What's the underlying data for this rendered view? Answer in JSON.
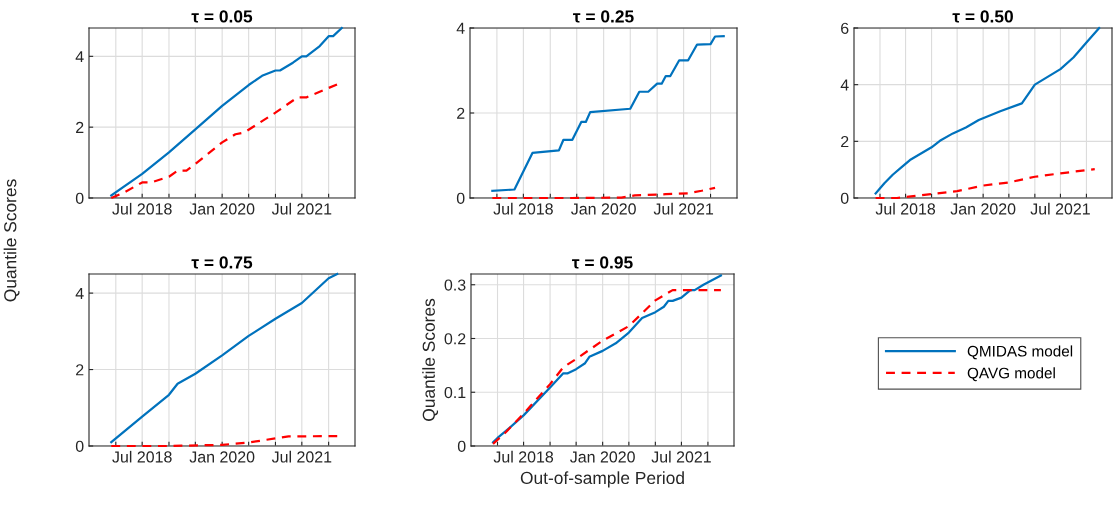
{
  "chart_data": [
    {
      "type": "line",
      "title": "τ = 0.05",
      "ylabel": "Quantile Scores",
      "xlim": [
        "2017-07",
        "2022-07"
      ],
      "ylim": [
        0,
        4.8
      ],
      "yticks": [
        0,
        2,
        4
      ],
      "xticks": [
        {
          "value": "2018-01",
          "label": null
        },
        {
          "value": "2018-07",
          "label": "Jul 2018"
        },
        {
          "value": "2019-01",
          "label": null
        },
        {
          "value": "2019-07",
          "label": null
        },
        {
          "value": "2020-01",
          "label": "Jan 2020"
        },
        {
          "value": "2020-07",
          "label": null
        },
        {
          "value": "2021-01",
          "label": null
        },
        {
          "value": "2021-07",
          "label": "Jul 2021"
        },
        {
          "value": "2022-01",
          "label": null
        }
      ],
      "grid": true,
      "series": [
        {
          "color": "#0072bd",
          "line_style": "solid",
          "x": [
            "2017-12",
            "2018-07",
            "2019-01",
            "2019-07",
            "2020-01",
            "2020-07",
            "2020-10",
            "2021-01",
            "2021-02",
            "2021-05",
            "2021-07",
            "2021-08",
            "2021-11",
            "2022-01",
            "2022-02",
            "2022-04"
          ],
          "values": [
            0.07,
            0.68,
            1.29,
            1.94,
            2.6,
            3.19,
            3.45,
            3.6,
            3.6,
            3.82,
            4.0,
            4.0,
            4.29,
            4.57,
            4.57,
            4.8
          ]
        },
        {
          "color": "#ff0000",
          "line_style": "dashed",
          "x": [
            "2017-12",
            "2018-03",
            "2018-07",
            "2018-09",
            "2019-01",
            "2019-03",
            "2019-05",
            "2019-07",
            "2020-01",
            "2020-04",
            "2020-06",
            "2021-01",
            "2021-06",
            "2021-08",
            "2022-03"
          ],
          "values": [
            0,
            0.16,
            0.44,
            0.44,
            0.6,
            0.77,
            0.77,
            0.96,
            1.57,
            1.8,
            1.85,
            2.41,
            2.84,
            2.84,
            3.21
          ]
        }
      ]
    },
    {
      "type": "line",
      "title": "τ = 0.25",
      "xlim": [
        "2017-07",
        "2022-07"
      ],
      "ylim": [
        0,
        4
      ],
      "yticks": [
        0,
        2,
        4
      ],
      "xticks": [
        {
          "value": "2018-01",
          "label": null
        },
        {
          "value": "2018-07",
          "label": "Jul 2018"
        },
        {
          "value": "2019-01",
          "label": null
        },
        {
          "value": "2019-07",
          "label": null
        },
        {
          "value": "2020-01",
          "label": "Jan 2020"
        },
        {
          "value": "2020-07",
          "label": null
        },
        {
          "value": "2021-01",
          "label": null
        },
        {
          "value": "2021-07",
          "label": "Jul 2021"
        },
        {
          "value": "2022-01",
          "label": null
        }
      ],
      "grid": true,
      "series": [
        {
          "color": "#0072bd",
          "line_style": "solid",
          "x": [
            "2017-12",
            "2018-05",
            "2018-09",
            "2019-03",
            "2019-04",
            "2019-06",
            "2019-08",
            "2019-09",
            "2019-10",
            "2020-07",
            "2020-09",
            "2020-11",
            "2021-01",
            "2021-02",
            "2021-03",
            "2021-04",
            "2021-06",
            "2021-08",
            "2021-10",
            "2022-01",
            "2022-02",
            "2022-04"
          ],
          "values": [
            0.17,
            0.2,
            1.06,
            1.12,
            1.37,
            1.37,
            1.79,
            1.79,
            2.02,
            2.1,
            2.5,
            2.5,
            2.69,
            2.69,
            2.87,
            2.87,
            3.24,
            3.24,
            3.61,
            3.62,
            3.8,
            3.81
          ]
        },
        {
          "color": "#ff0000",
          "line_style": "dashed",
          "x": [
            "2017-12",
            "2019-06",
            "2020-05",
            "2020-08",
            "2021-03",
            "2021-08",
            "2021-11",
            "2022-02"
          ],
          "values": [
            0,
            0,
            0.01,
            0.06,
            0.09,
            0.11,
            0.17,
            0.24
          ]
        }
      ]
    },
    {
      "type": "line",
      "title": "τ = 0.50",
      "xlim": [
        "2017-07",
        "2022-07"
      ],
      "ylim": [
        0,
        6
      ],
      "yticks": [
        0,
        2,
        4,
        6
      ],
      "xticks": [
        {
          "value": "2018-01",
          "label": null
        },
        {
          "value": "2018-07",
          "label": "Jul 2018"
        },
        {
          "value": "2019-01",
          "label": null
        },
        {
          "value": "2019-07",
          "label": null
        },
        {
          "value": "2020-01",
          "label": "Jan 2020"
        },
        {
          "value": "2020-07",
          "label": null
        },
        {
          "value": "2021-01",
          "label": null
        },
        {
          "value": "2021-07",
          "label": "Jul 2021"
        },
        {
          "value": "2022-01",
          "label": null
        }
      ],
      "grid": true,
      "series": [
        {
          "color": "#0072bd",
          "line_style": "solid",
          "x": [
            "2017-12",
            "2018-02",
            "2018-04",
            "2018-06",
            "2018-08",
            "2019-01",
            "2019-03",
            "2019-06",
            "2019-09",
            "2019-12",
            "2020-05",
            "2020-10",
            "2021-01",
            "2021-07",
            "2021-10",
            "2022-01",
            "2022-04"
          ],
          "values": [
            0.16,
            0.52,
            0.82,
            1.08,
            1.34,
            1.79,
            2.02,
            2.28,
            2.49,
            2.75,
            3.06,
            3.34,
            4.0,
            4.55,
            4.96,
            5.49,
            6.0
          ]
        },
        {
          "color": "#ff0000",
          "line_style": "dashed",
          "x": [
            "2017-12",
            "2018-05",
            "2019-01",
            "2019-07",
            "2020-01",
            "2020-07",
            "2021-01",
            "2021-07",
            "2022-03"
          ],
          "values": [
            0,
            0,
            0.14,
            0.24,
            0.44,
            0.55,
            0.75,
            0.87,
            1.02
          ]
        }
      ]
    },
    {
      "type": "line",
      "title": "τ = 0.75",
      "xlim": [
        "2017-07",
        "2022-07"
      ],
      "ylim": [
        0,
        4.5
      ],
      "yticks": [
        0,
        2,
        4
      ],
      "xticks": [
        {
          "value": "2018-01",
          "label": null
        },
        {
          "value": "2018-07",
          "label": "Jul 2018"
        },
        {
          "value": "2019-01",
          "label": null
        },
        {
          "value": "2019-07",
          "label": null
        },
        {
          "value": "2020-01",
          "label": "Jan 2020"
        },
        {
          "value": "2020-07",
          "label": null
        },
        {
          "value": "2021-01",
          "label": null
        },
        {
          "value": "2021-07",
          "label": "Jul 2021"
        },
        {
          "value": "2022-01",
          "label": null
        }
      ],
      "grid": true,
      "series": [
        {
          "color": "#0072bd",
          "line_style": "solid",
          "x": [
            "2017-12",
            "2018-07",
            "2019-01",
            "2019-03",
            "2019-07",
            "2020-01",
            "2020-07",
            "2021-01",
            "2021-07",
            "2022-01",
            "2022-03"
          ],
          "values": [
            0.1,
            0.77,
            1.34,
            1.63,
            1.89,
            2.37,
            2.88,
            3.33,
            3.74,
            4.39,
            4.5
          ]
        },
        {
          "color": "#ff0000",
          "line_style": "dashed",
          "x": [
            "2017-12",
            "2019-01",
            "2020-01",
            "2020-07",
            "2021-01",
            "2021-04",
            "2022-03"
          ],
          "values": [
            0,
            0,
            0.03,
            0.09,
            0.2,
            0.25,
            0.26
          ]
        }
      ]
    },
    {
      "type": "line",
      "title": "τ = 0.95",
      "xlabel": "Out-of-sample Period",
      "ylabel": "Quantile Scores",
      "xlim": [
        "2017-07",
        "2022-07"
      ],
      "ylim": [
        0,
        0.32
      ],
      "yticks": [
        0,
        0.1,
        0.2,
        0.3
      ],
      "xticks": [
        {
          "value": "2018-01",
          "label": null
        },
        {
          "value": "2018-07",
          "label": "Jul 2018"
        },
        {
          "value": "2019-01",
          "label": null
        },
        {
          "value": "2019-07",
          "label": null
        },
        {
          "value": "2020-01",
          "label": "Jan 2020"
        },
        {
          "value": "2020-07",
          "label": null
        },
        {
          "value": "2021-01",
          "label": null
        },
        {
          "value": "2021-07",
          "label": "Jul 2021"
        },
        {
          "value": "2022-01",
          "label": null
        }
      ],
      "grid": true,
      "legend": "right",
      "series": [
        {
          "name": "QMIDAS model",
          "color": "#0072bd",
          "line_style": "solid",
          "x": [
            "2017-12",
            "2018-01",
            "2018-03",
            "2018-07",
            "2019-01",
            "2019-04",
            "2019-05",
            "2019-07",
            "2019-09",
            "2019-10",
            "2020-01",
            "2020-04",
            "2020-07",
            "2020-10",
            "2021-01",
            "2021-03",
            "2021-04",
            "2021-05",
            "2021-07",
            "2021-09",
            "2021-10",
            "2021-12",
            "2022-04"
          ],
          "values": [
            0.007,
            0.015,
            0.028,
            0.057,
            0.109,
            0.135,
            0.135,
            0.143,
            0.154,
            0.166,
            0.177,
            0.191,
            0.211,
            0.238,
            0.249,
            0.259,
            0.27,
            0.27,
            0.276,
            0.29,
            0.29,
            0.3,
            0.317
          ]
        },
        {
          "name": "QAVG model",
          "color": "#ff0000",
          "line_style": "dashed",
          "x": [
            "2017-12",
            "2018-03",
            "2018-07",
            "2019-01",
            "2019-04",
            "2019-07",
            "2020-01",
            "2020-07",
            "2021-01",
            "2021-05",
            "2022-04"
          ],
          "values": [
            0.004,
            0.026,
            0.06,
            0.115,
            0.146,
            0.162,
            0.196,
            0.223,
            0.271,
            0.29,
            0.29
          ]
        }
      ]
    }
  ]
}
